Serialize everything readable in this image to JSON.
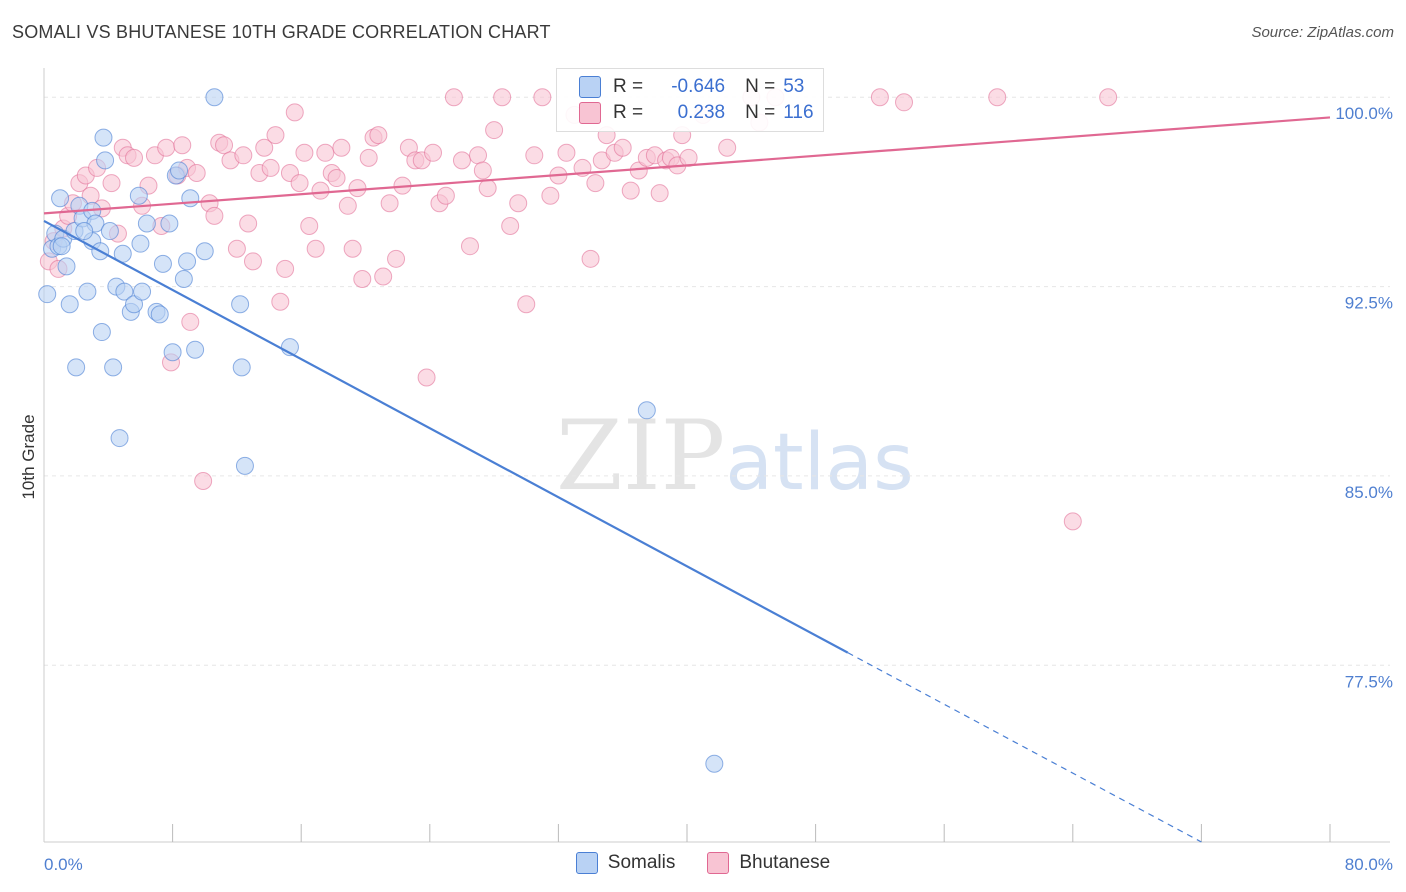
{
  "title": "SOMALI VS BHUTANESE 10TH GRADE CORRELATION CHART",
  "source": "Source: ZipAtlas.com",
  "watermark": {
    "zip": "ZIP",
    "atlas": "atlas"
  },
  "colors": {
    "somalis": "#4a7fd4",
    "bhutanese": "#e06892",
    "somalis_fill": "#b9d2f4",
    "bhutanese_fill": "#f8c4d3"
  },
  "legend_top": [
    {
      "name": "Somalis",
      "r_label": "R =",
      "r_value": "-0.646",
      "n_label": "N =",
      "n_value": "53"
    },
    {
      "name": "Bhutanese",
      "r_label": "R =",
      "r_value": "0.238",
      "n_label": "N =",
      "n_value": "116"
    }
  ],
  "legend_bottom": [
    "Somalis",
    "Bhutanese"
  ],
  "chart_data": {
    "type": "scatter",
    "title": "SOMALI VS BHUTANESE 10TH GRADE CORRELATION CHART",
    "xlabel": "",
    "ylabel": "10th Grade",
    "xlim": [
      0,
      80
    ],
    "ylim": [
      70.5,
      101
    ],
    "x_tick_labels": [
      "0.0%",
      "80.0%"
    ],
    "y_ticks": [
      100,
      92.5,
      85,
      77.5
    ],
    "y_tick_labels": [
      "100.0%",
      "92.5%",
      "85.0%",
      "77.5%"
    ],
    "grid": true,
    "legend": "top-center",
    "series": [
      {
        "name": "Somalis",
        "points": [
          [
            0.2,
            92.2
          ],
          [
            0.5,
            94.0
          ],
          [
            0.7,
            94.6
          ],
          [
            0.9,
            94.1
          ],
          [
            1.0,
            96.0
          ],
          [
            1.2,
            94.4
          ],
          [
            1.4,
            93.3
          ],
          [
            1.6,
            91.8
          ],
          [
            1.9,
            94.7
          ],
          [
            2.0,
            89.3
          ],
          [
            2.2,
            95.7
          ],
          [
            2.4,
            95.2
          ],
          [
            2.7,
            92.3
          ],
          [
            3.0,
            94.3
          ],
          [
            3.0,
            95.5
          ],
          [
            3.2,
            95.0
          ],
          [
            3.5,
            93.9
          ],
          [
            3.6,
            90.7
          ],
          [
            3.7,
            98.4
          ],
          [
            3.8,
            97.5
          ],
          [
            4.1,
            94.7
          ],
          [
            4.3,
            89.3
          ],
          [
            4.5,
            92.5
          ],
          [
            4.7,
            86.5
          ],
          [
            4.9,
            93.8
          ],
          [
            5.0,
            92.3
          ],
          [
            5.4,
            91.5
          ],
          [
            5.6,
            91.8
          ],
          [
            5.9,
            96.1
          ],
          [
            6.1,
            92.3
          ],
          [
            6.4,
            95.0
          ],
          [
            7.0,
            91.5
          ],
          [
            7.2,
            91.4
          ],
          [
            7.4,
            93.4
          ],
          [
            7.8,
            95.0
          ],
          [
            8.0,
            89.9
          ],
          [
            8.2,
            96.9
          ],
          [
            8.4,
            97.1
          ],
          [
            8.7,
            92.8
          ],
          [
            8.9,
            93.5
          ],
          [
            9.1,
            96.0
          ],
          [
            9.4,
            90.0
          ],
          [
            10.0,
            93.9
          ],
          [
            10.6,
            100.0
          ],
          [
            12.2,
            91.8
          ],
          [
            12.3,
            89.3
          ],
          [
            12.5,
            85.4
          ],
          [
            15.3,
            90.1
          ],
          [
            37.5,
            87.6
          ],
          [
            41.7,
            73.6
          ],
          [
            1.1,
            94.1
          ],
          [
            2.5,
            94.7
          ],
          [
            6.0,
            94.2
          ]
        ],
        "trend": {
          "x0": 0,
          "y0": 95.1,
          "x1": 50,
          "y1": 78.0,
          "dashed_to_x": 72,
          "dashed_to_y": 70.5
        }
      },
      {
        "name": "Bhutanese",
        "points": [
          [
            0.3,
            93.5
          ],
          [
            0.6,
            94.3
          ],
          [
            0.9,
            93.2
          ],
          [
            1.2,
            94.8
          ],
          [
            1.5,
            95.3
          ],
          [
            1.8,
            95.8
          ],
          [
            2.2,
            96.6
          ],
          [
            2.6,
            96.9
          ],
          [
            2.9,
            96.1
          ],
          [
            3.3,
            97.2
          ],
          [
            3.6,
            95.6
          ],
          [
            4.2,
            96.6
          ],
          [
            4.6,
            94.6
          ],
          [
            4.9,
            98.0
          ],
          [
            5.2,
            97.7
          ],
          [
            5.6,
            97.6
          ],
          [
            6.1,
            95.7
          ],
          [
            6.5,
            96.5
          ],
          [
            6.9,
            97.7
          ],
          [
            7.3,
            94.9
          ],
          [
            7.6,
            98.0
          ],
          [
            7.9,
            89.5
          ],
          [
            8.3,
            96.9
          ],
          [
            8.6,
            98.1
          ],
          [
            8.9,
            97.2
          ],
          [
            9.1,
            91.1
          ],
          [
            9.5,
            97.0
          ],
          [
            9.9,
            84.8
          ],
          [
            10.3,
            95.8
          ],
          [
            10.6,
            95.3
          ],
          [
            10.9,
            98.2
          ],
          [
            11.2,
            98.1
          ],
          [
            11.6,
            97.5
          ],
          [
            12.0,
            94.0
          ],
          [
            12.4,
            97.7
          ],
          [
            12.7,
            95.0
          ],
          [
            13.0,
            93.5
          ],
          [
            13.4,
            97.0
          ],
          [
            13.7,
            98.0
          ],
          [
            14.1,
            97.2
          ],
          [
            14.4,
            98.5
          ],
          [
            14.7,
            91.9
          ],
          [
            15.0,
            93.2
          ],
          [
            15.3,
            97.0
          ],
          [
            15.6,
            99.4
          ],
          [
            15.9,
            96.6
          ],
          [
            16.2,
            97.8
          ],
          [
            16.5,
            94.9
          ],
          [
            16.9,
            94.0
          ],
          [
            17.2,
            96.3
          ],
          [
            17.5,
            97.8
          ],
          [
            17.9,
            97.0
          ],
          [
            18.2,
            96.8
          ],
          [
            18.5,
            98.0
          ],
          [
            18.9,
            95.7
          ],
          [
            19.2,
            94.0
          ],
          [
            19.5,
            96.4
          ],
          [
            19.8,
            92.8
          ],
          [
            20.2,
            97.6
          ],
          [
            20.5,
            98.4
          ],
          [
            20.8,
            98.5
          ],
          [
            21.1,
            92.9
          ],
          [
            21.5,
            95.8
          ],
          [
            21.9,
            93.6
          ],
          [
            22.3,
            96.5
          ],
          [
            22.7,
            98.0
          ],
          [
            23.1,
            97.5
          ],
          [
            23.5,
            97.5
          ],
          [
            23.8,
            88.9
          ],
          [
            24.2,
            97.8
          ],
          [
            24.6,
            95.8
          ],
          [
            25.0,
            96.1
          ],
          [
            25.5,
            100.0
          ],
          [
            26.0,
            97.5
          ],
          [
            26.5,
            94.1
          ],
          [
            27.0,
            97.7
          ],
          [
            27.3,
            97.1
          ],
          [
            27.6,
            96.4
          ],
          [
            28.0,
            98.7
          ],
          [
            28.5,
            100.0
          ],
          [
            29.0,
            94.9
          ],
          [
            29.5,
            95.8
          ],
          [
            30.0,
            91.8
          ],
          [
            30.5,
            97.7
          ],
          [
            31.0,
            100.0
          ],
          [
            31.5,
            96.1
          ],
          [
            32.0,
            96.9
          ],
          [
            32.5,
            97.8
          ],
          [
            33.0,
            99.3
          ],
          [
            33.5,
            97.2
          ],
          [
            34.0,
            93.6
          ],
          [
            34.3,
            96.6
          ],
          [
            34.7,
            97.5
          ],
          [
            35.0,
            98.5
          ],
          [
            35.5,
            97.8
          ],
          [
            36.0,
            98.0
          ],
          [
            36.5,
            96.3
          ],
          [
            37.0,
            97.1
          ],
          [
            37.5,
            97.6
          ],
          [
            38.0,
            97.7
          ],
          [
            38.3,
            96.2
          ],
          [
            38.7,
            97.5
          ],
          [
            39.0,
            97.6
          ],
          [
            39.4,
            97.3
          ],
          [
            39.7,
            98.5
          ],
          [
            40.1,
            97.6
          ],
          [
            41.0,
            99.3
          ],
          [
            42.5,
            98.0
          ],
          [
            44.0,
            100.0
          ],
          [
            44.5,
            99.0
          ],
          [
            45.5,
            100.0
          ],
          [
            52.0,
            100.0
          ],
          [
            53.5,
            99.8
          ],
          [
            59.3,
            100.0
          ],
          [
            66.2,
            100.0
          ],
          [
            64.0,
            83.2
          ]
        ],
        "trend": {
          "x0": 0,
          "y0": 95.4,
          "x1": 80,
          "y1": 99.2
        }
      }
    ]
  }
}
